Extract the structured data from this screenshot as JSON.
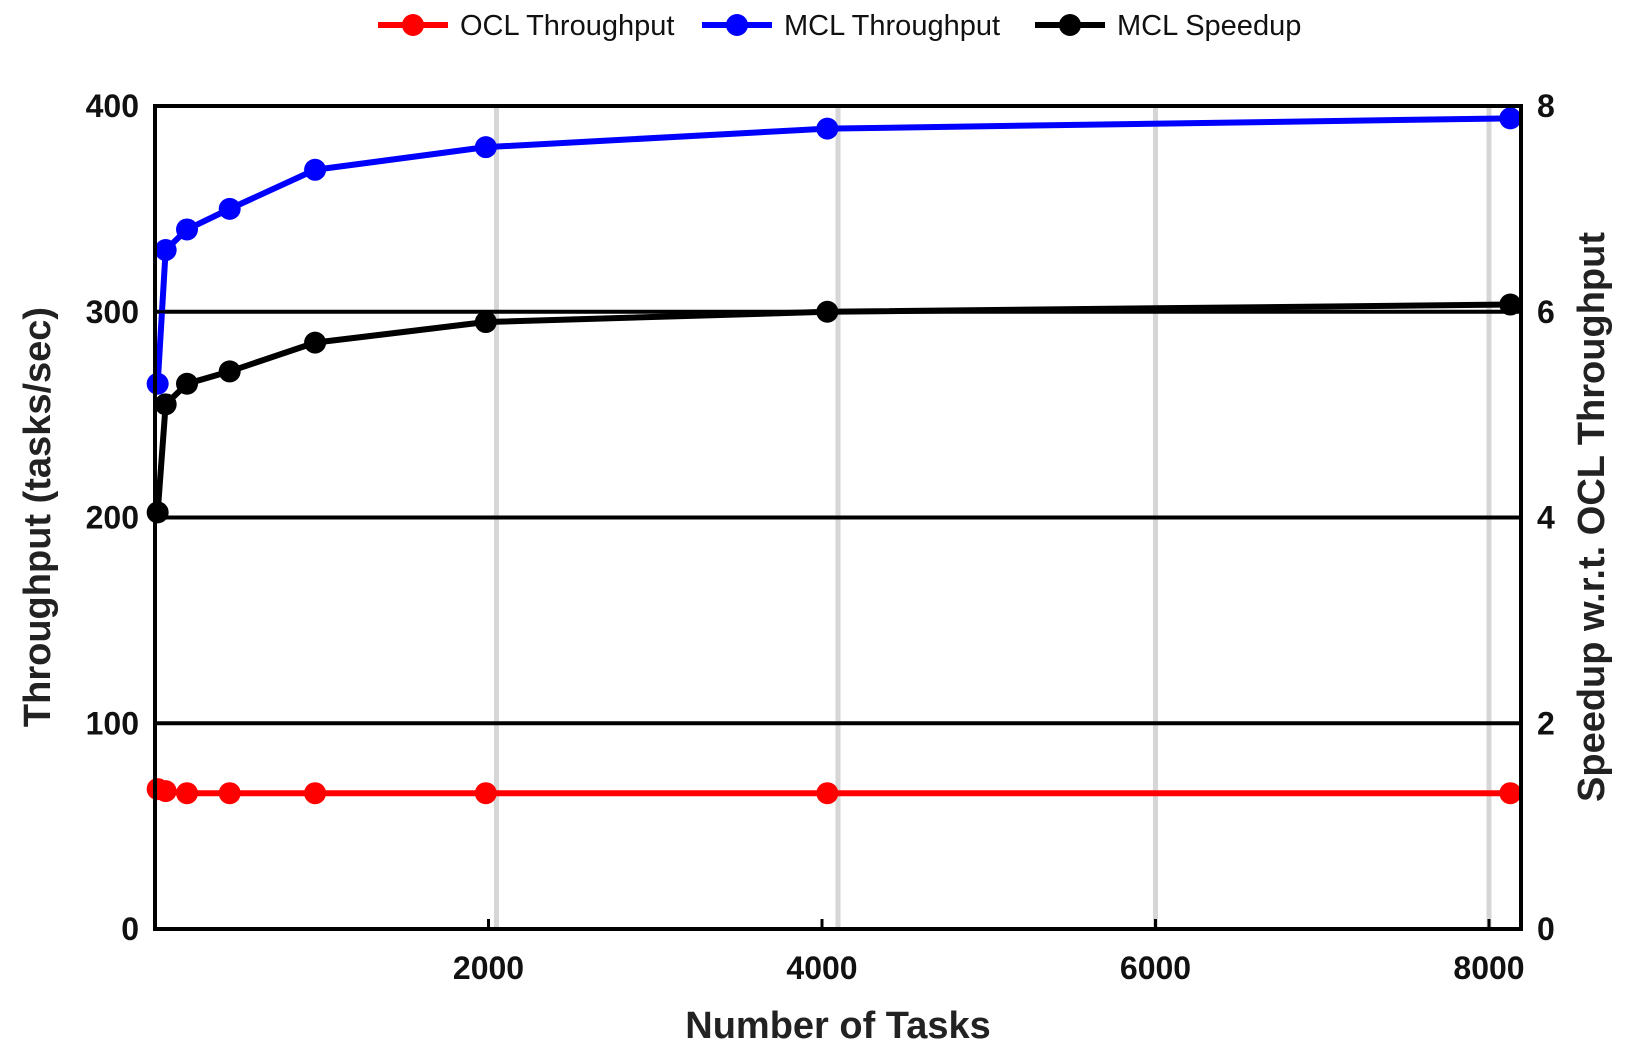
{
  "chart_data": {
    "type": "line",
    "xlabel": "Number of Tasks",
    "ylabel_left": "Throughput (tasks/sec)",
    "ylabel_right": "Speedup w.r.t. OCL Throughput",
    "xlim": [
      0,
      8192
    ],
    "ylim_left": [
      0,
      400
    ],
    "ylim_right": [
      0,
      8
    ],
    "x_ticks": [
      2000,
      4000,
      6000,
      8000
    ],
    "x_tick_labels": [
      "2000",
      "4000",
      "6000",
      "8000"
    ],
    "y_left_ticks": [
      0,
      100,
      200,
      300,
      400
    ],
    "y_left_tick_labels": [
      "0",
      "100",
      "200",
      "300",
      "400"
    ],
    "y_right_ticks": [
      0,
      2,
      4,
      6,
      8
    ],
    "y_right_tick_labels": [
      "0",
      "2",
      "4",
      "6",
      "8"
    ],
    "x_grid_lines": [
      2048,
      4096,
      6000,
      8000
    ],
    "y_grid_lines": [
      100,
      200,
      300
    ],
    "legend_position": "top-center",
    "series": [
      {
        "name": "OCL Throughput",
        "color": "#ff0000",
        "axis": "left",
        "x": [
          16,
          64,
          192,
          448,
          960,
          1984,
          4032,
          8128
        ],
        "y": [
          68,
          67,
          66,
          66,
          66,
          66,
          66,
          66
        ]
      },
      {
        "name": "MCL Throughput",
        "color": "#0000ff",
        "axis": "left",
        "x": [
          16,
          64,
          192,
          448,
          960,
          1984,
          4032,
          8128
        ],
        "y": [
          265,
          330,
          340,
          350,
          369,
          380,
          389,
          394
        ]
      },
      {
        "name": "MCL Speedup",
        "color": "#000000",
        "axis": "right",
        "x": [
          16,
          64,
          192,
          448,
          960,
          1984,
          4032,
          8128
        ],
        "y": [
          4.05,
          5.1,
          5.3,
          5.42,
          5.7,
          5.9,
          6.0,
          6.07
        ]
      }
    ]
  }
}
